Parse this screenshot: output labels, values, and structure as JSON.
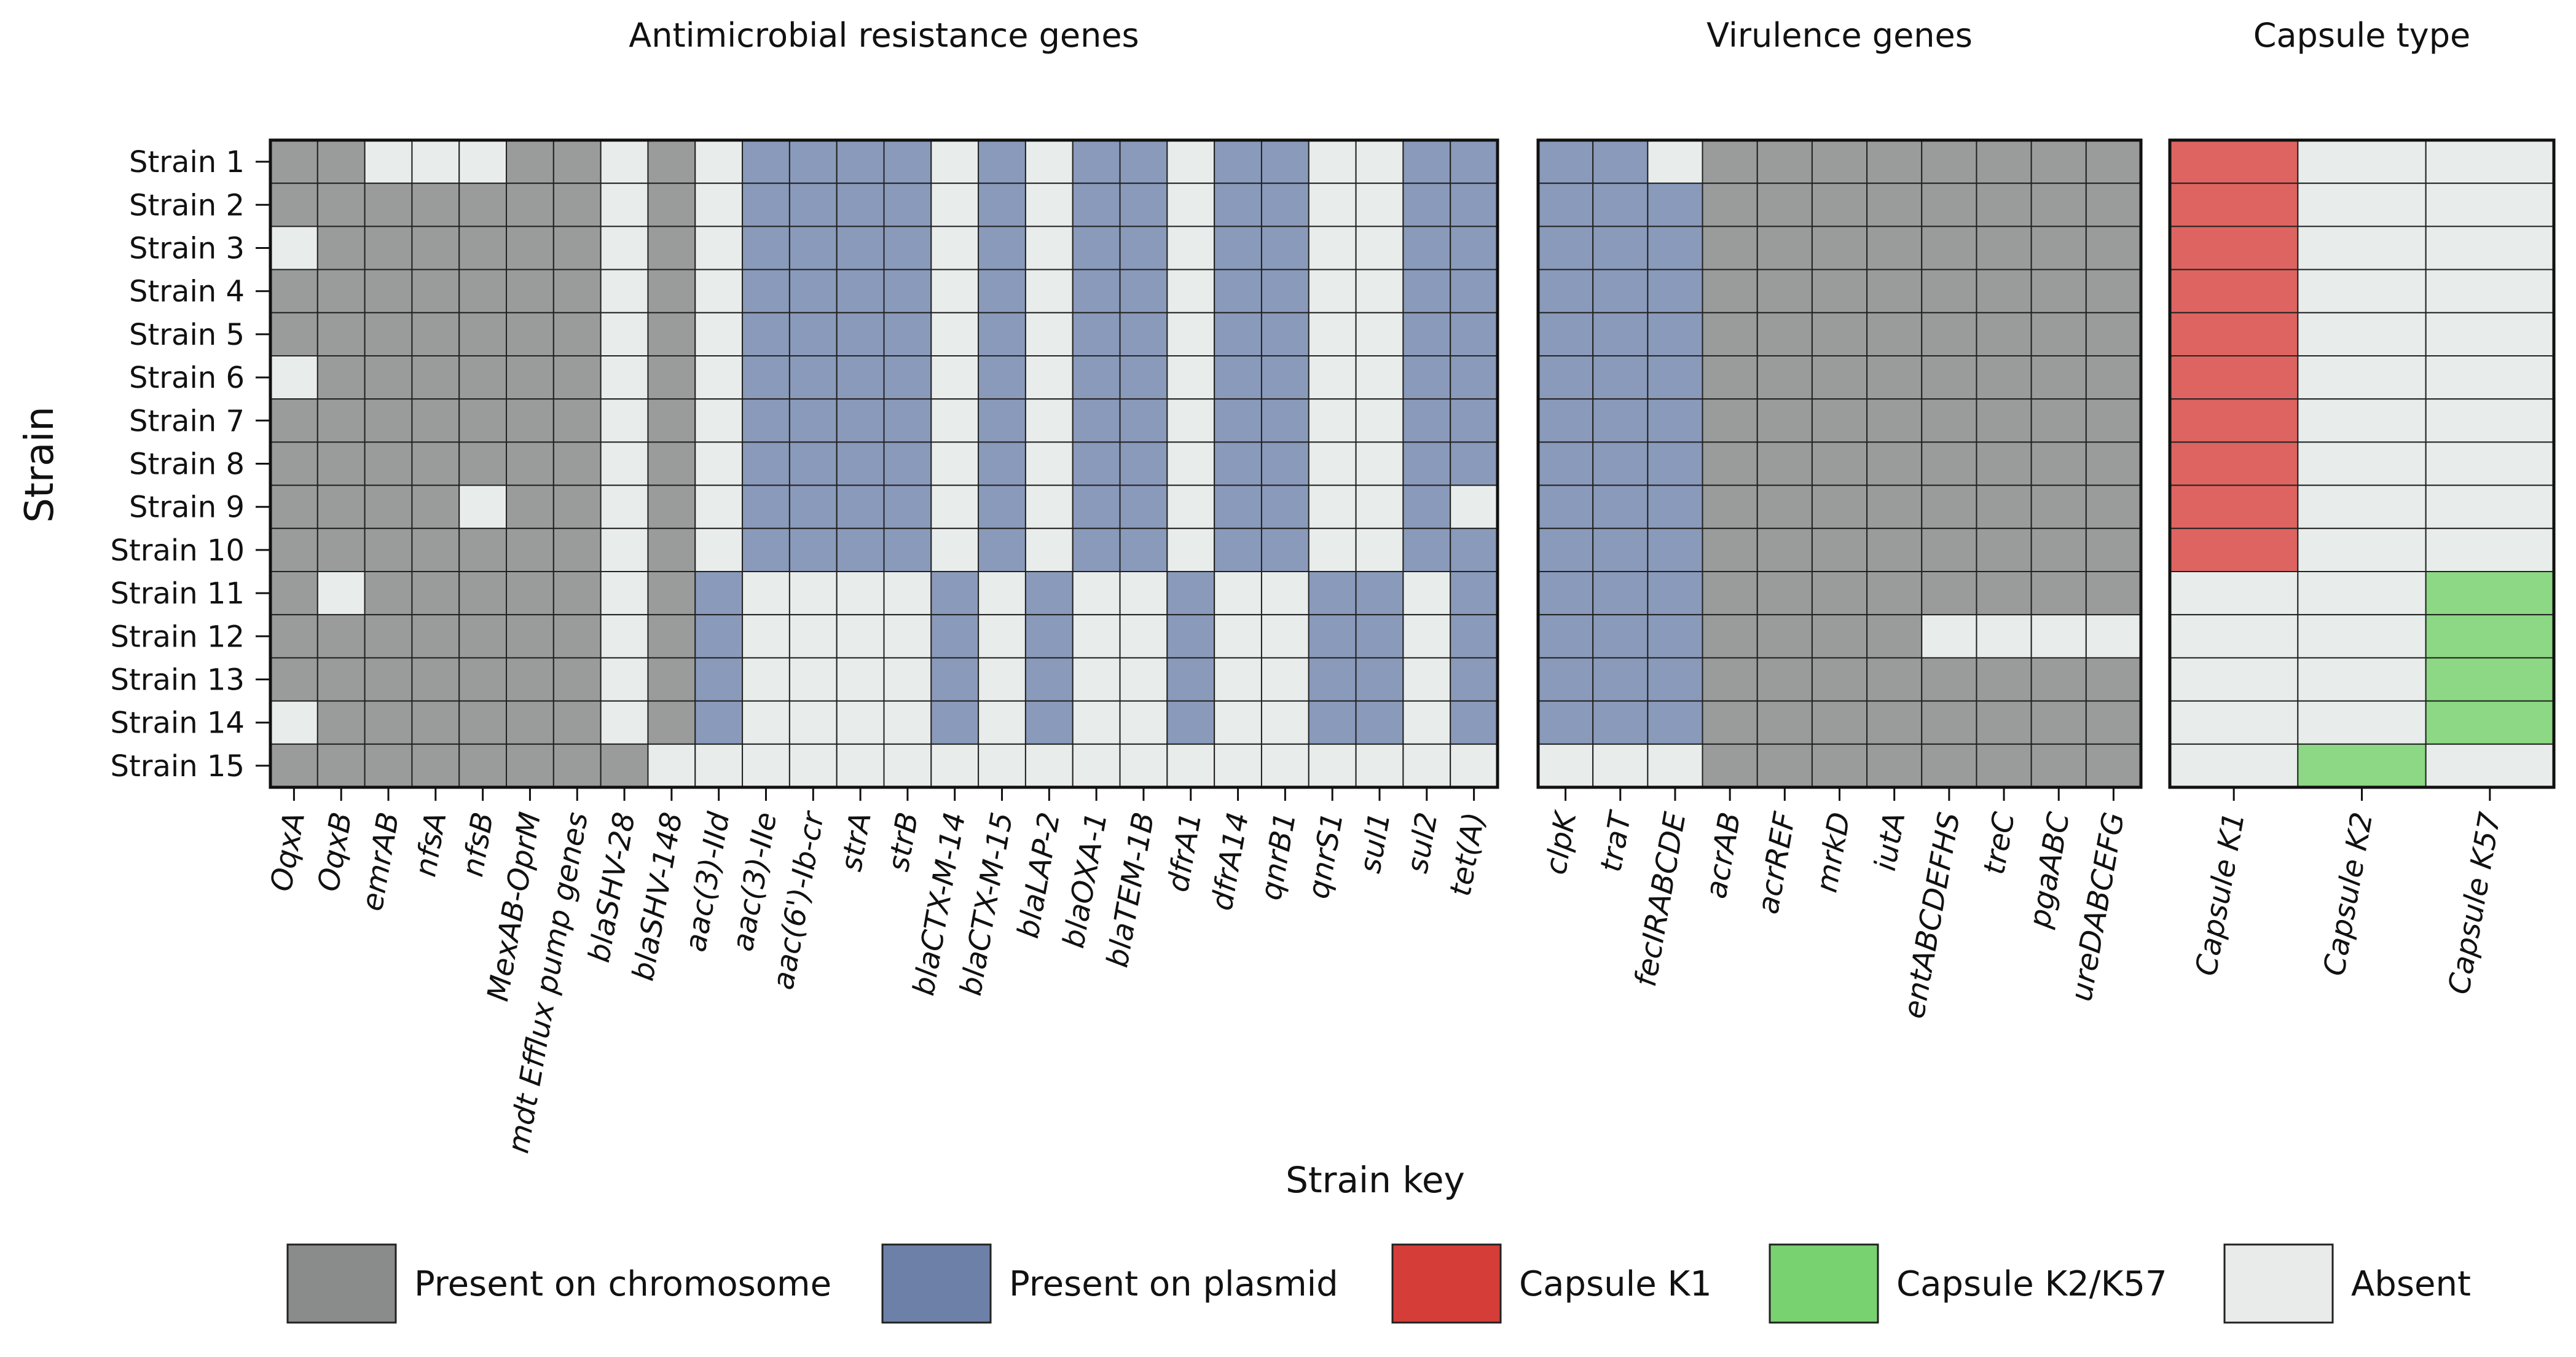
{
  "chart_data": {
    "type": "heatmap",
    "ylabel": "Strain",
    "rows": [
      "Strain 1",
      "Strain 2",
      "Strain 3",
      "Strain 4",
      "Strain 5",
      "Strain 6",
      "Strain 7",
      "Strain 8",
      "Strain 9",
      "Strain 10",
      "Strain 11",
      "Strain 12",
      "Strain 13",
      "Strain 14",
      "Strain 15"
    ],
    "value_codes": {
      "C": "Present on chromosome",
      "P": "Present on plasmid",
      "A": "Absent",
      "K1": "Capsule K1",
      "K2": "Capsule K2/K57"
    },
    "colors": {
      "C": "#9a9c9b",
      "P": "#8a9aba",
      "A": "#e8edec",
      "K1": "#de6461",
      "K2": "#8cd884"
    },
    "panels": [
      {
        "title": "Antimicrobial resistance genes",
        "columns": [
          "OqxA",
          "OqxB",
          "emrAB",
          "nfsA",
          "nfsB",
          "MexAB-OprM",
          "mdt Efflux pump genes",
          "blaSHV-28",
          "blaSHV-148",
          "aac(3)-IId",
          "aac(3)-IIe",
          "aac(6')-Ib-cr",
          "strA",
          "strB",
          "blaCTX-M-14",
          "blaCTX-M-15",
          "blaLAP-2",
          "blaOXA-1",
          "blaTEM-1B",
          "dfrA1",
          "dfrA14",
          "qnrB1",
          "qnrS1",
          "sul1",
          "sul2",
          "tet(A)"
        ],
        "values": [
          [
            "C",
            "C",
            "A",
            "A",
            "A",
            "C",
            "C",
            "A",
            "C",
            "A",
            "P",
            "P",
            "P",
            "P",
            "A",
            "P",
            "A",
            "P",
            "P",
            "A",
            "P",
            "P",
            "A",
            "A",
            "P",
            "P"
          ],
          [
            "C",
            "C",
            "C",
            "C",
            "C",
            "C",
            "C",
            "A",
            "C",
            "A",
            "P",
            "P",
            "P",
            "P",
            "A",
            "P",
            "A",
            "P",
            "P",
            "A",
            "P",
            "P",
            "A",
            "A",
            "P",
            "P"
          ],
          [
            "A",
            "C",
            "C",
            "C",
            "C",
            "C",
            "C",
            "A",
            "C",
            "A",
            "P",
            "P",
            "P",
            "P",
            "A",
            "P",
            "A",
            "P",
            "P",
            "A",
            "P",
            "P",
            "A",
            "A",
            "P",
            "P"
          ],
          [
            "C",
            "C",
            "C",
            "C",
            "C",
            "C",
            "C",
            "A",
            "C",
            "A",
            "P",
            "P",
            "P",
            "P",
            "A",
            "P",
            "A",
            "P",
            "P",
            "A",
            "P",
            "P",
            "A",
            "A",
            "P",
            "P"
          ],
          [
            "C",
            "C",
            "C",
            "C",
            "C",
            "C",
            "C",
            "A",
            "C",
            "A",
            "P",
            "P",
            "P",
            "P",
            "A",
            "P",
            "A",
            "P",
            "P",
            "A",
            "P",
            "P",
            "A",
            "A",
            "P",
            "P"
          ],
          [
            "A",
            "C",
            "C",
            "C",
            "C",
            "C",
            "C",
            "A",
            "C",
            "A",
            "P",
            "P",
            "P",
            "P",
            "A",
            "P",
            "A",
            "P",
            "P",
            "A",
            "P",
            "P",
            "A",
            "A",
            "P",
            "P"
          ],
          [
            "C",
            "C",
            "C",
            "C",
            "C",
            "C",
            "C",
            "A",
            "C",
            "A",
            "P",
            "P",
            "P",
            "P",
            "A",
            "P",
            "A",
            "P",
            "P",
            "A",
            "P",
            "P",
            "A",
            "A",
            "P",
            "P"
          ],
          [
            "C",
            "C",
            "C",
            "C",
            "C",
            "C",
            "C",
            "A",
            "C",
            "A",
            "P",
            "P",
            "P",
            "P",
            "A",
            "P",
            "A",
            "P",
            "P",
            "A",
            "P",
            "P",
            "A",
            "A",
            "P",
            "P"
          ],
          [
            "C",
            "C",
            "C",
            "C",
            "A",
            "C",
            "C",
            "A",
            "C",
            "A",
            "P",
            "P",
            "P",
            "P",
            "A",
            "P",
            "A",
            "P",
            "P",
            "A",
            "P",
            "P",
            "A",
            "A",
            "P",
            "A"
          ],
          [
            "C",
            "C",
            "C",
            "C",
            "C",
            "C",
            "C",
            "A",
            "C",
            "A",
            "P",
            "P",
            "P",
            "P",
            "A",
            "P",
            "A",
            "P",
            "P",
            "A",
            "P",
            "P",
            "A",
            "A",
            "P",
            "P"
          ],
          [
            "C",
            "A",
            "C",
            "C",
            "C",
            "C",
            "C",
            "A",
            "C",
            "P",
            "A",
            "A",
            "A",
            "A",
            "P",
            "A",
            "P",
            "A",
            "A",
            "P",
            "A",
            "A",
            "P",
            "P",
            "A",
            "P"
          ],
          [
            "C",
            "C",
            "C",
            "C",
            "C",
            "C",
            "C",
            "A",
            "C",
            "P",
            "A",
            "A",
            "A",
            "A",
            "P",
            "A",
            "P",
            "A",
            "A",
            "P",
            "A",
            "A",
            "P",
            "P",
            "A",
            "P"
          ],
          [
            "C",
            "C",
            "C",
            "C",
            "C",
            "C",
            "C",
            "A",
            "C",
            "P",
            "A",
            "A",
            "A",
            "A",
            "P",
            "A",
            "P",
            "A",
            "A",
            "P",
            "A",
            "A",
            "P",
            "P",
            "A",
            "P"
          ],
          [
            "A",
            "C",
            "C",
            "C",
            "C",
            "C",
            "C",
            "A",
            "C",
            "P",
            "A",
            "A",
            "A",
            "A",
            "P",
            "A",
            "P",
            "A",
            "A",
            "P",
            "A",
            "A",
            "P",
            "P",
            "A",
            "P"
          ],
          [
            "C",
            "C",
            "C",
            "C",
            "C",
            "C",
            "C",
            "C",
            "A",
            "A",
            "A",
            "A",
            "A",
            "A",
            "A",
            "A",
            "A",
            "A",
            "A",
            "A",
            "A",
            "A",
            "A",
            "A",
            "A",
            "A"
          ]
        ]
      },
      {
        "title": "Virulence genes",
        "columns": [
          "clpK",
          "traT",
          "fecIRABCDE",
          "acrAB",
          "acrREF",
          "mrkD",
          "iutA",
          "entABCDEFHS",
          "treC",
          "pgaABC",
          "ureDABCEFG"
        ],
        "values": [
          [
            "P",
            "P",
            "A",
            "C",
            "C",
            "C",
            "C",
            "C",
            "C",
            "C",
            "C"
          ],
          [
            "P",
            "P",
            "P",
            "C",
            "C",
            "C",
            "C",
            "C",
            "C",
            "C",
            "C"
          ],
          [
            "P",
            "P",
            "P",
            "C",
            "C",
            "C",
            "C",
            "C",
            "C",
            "C",
            "C"
          ],
          [
            "P",
            "P",
            "P",
            "C",
            "C",
            "C",
            "C",
            "C",
            "C",
            "C",
            "C"
          ],
          [
            "P",
            "P",
            "P",
            "C",
            "C",
            "C",
            "C",
            "C",
            "C",
            "C",
            "C"
          ],
          [
            "P",
            "P",
            "P",
            "C",
            "C",
            "C",
            "C",
            "C",
            "C",
            "C",
            "C"
          ],
          [
            "P",
            "P",
            "P",
            "C",
            "C",
            "C",
            "C",
            "C",
            "C",
            "C",
            "C"
          ],
          [
            "P",
            "P",
            "P",
            "C",
            "C",
            "C",
            "C",
            "C",
            "C",
            "C",
            "C"
          ],
          [
            "P",
            "P",
            "P",
            "C",
            "C",
            "C",
            "C",
            "C",
            "C",
            "C",
            "C"
          ],
          [
            "P",
            "P",
            "P",
            "C",
            "C",
            "C",
            "C",
            "C",
            "C",
            "C",
            "C"
          ],
          [
            "P",
            "P",
            "P",
            "C",
            "C",
            "C",
            "C",
            "C",
            "C",
            "C",
            "C"
          ],
          [
            "P",
            "P",
            "P",
            "C",
            "C",
            "C",
            "C",
            "A",
            "A",
            "A",
            "A"
          ],
          [
            "P",
            "P",
            "P",
            "C",
            "C",
            "C",
            "C",
            "C",
            "C",
            "C",
            "C"
          ],
          [
            "P",
            "P",
            "P",
            "C",
            "C",
            "C",
            "C",
            "C",
            "C",
            "C",
            "C"
          ],
          [
            "A",
            "A",
            "A",
            "C",
            "C",
            "C",
            "C",
            "C",
            "C",
            "C",
            "C"
          ]
        ]
      },
      {
        "title": "Capsule type",
        "columns": [
          "Capsule K1",
          "Capsule K2",
          "Capsule K57"
        ],
        "values": [
          [
            "K1",
            "A",
            "A"
          ],
          [
            "K1",
            "A",
            "A"
          ],
          [
            "K1",
            "A",
            "A"
          ],
          [
            "K1",
            "A",
            "A"
          ],
          [
            "K1",
            "A",
            "A"
          ],
          [
            "K1",
            "A",
            "A"
          ],
          [
            "K1",
            "A",
            "A"
          ],
          [
            "K1",
            "A",
            "A"
          ],
          [
            "K1",
            "A",
            "A"
          ],
          [
            "K1",
            "A",
            "A"
          ],
          [
            "A",
            "A",
            "K2"
          ],
          [
            "A",
            "A",
            "K2"
          ],
          [
            "A",
            "A",
            "K2"
          ],
          [
            "A",
            "A",
            "K2"
          ],
          [
            "A",
            "K2",
            "A"
          ]
        ]
      }
    ],
    "legend": {
      "title": "Strain key",
      "entries": [
        {
          "label": "Present on chromosome",
          "color": "#8a8c8b"
        },
        {
          "label": "Present on plasmid",
          "color": "#6d80a8"
        },
        {
          "label": "Capsule K1",
          "color": "#d43d38"
        },
        {
          "label": "Capsule K2/K57",
          "color": "#79d270"
        },
        {
          "label": "Absent",
          "color": "#e8ebea"
        }
      ]
    }
  }
}
